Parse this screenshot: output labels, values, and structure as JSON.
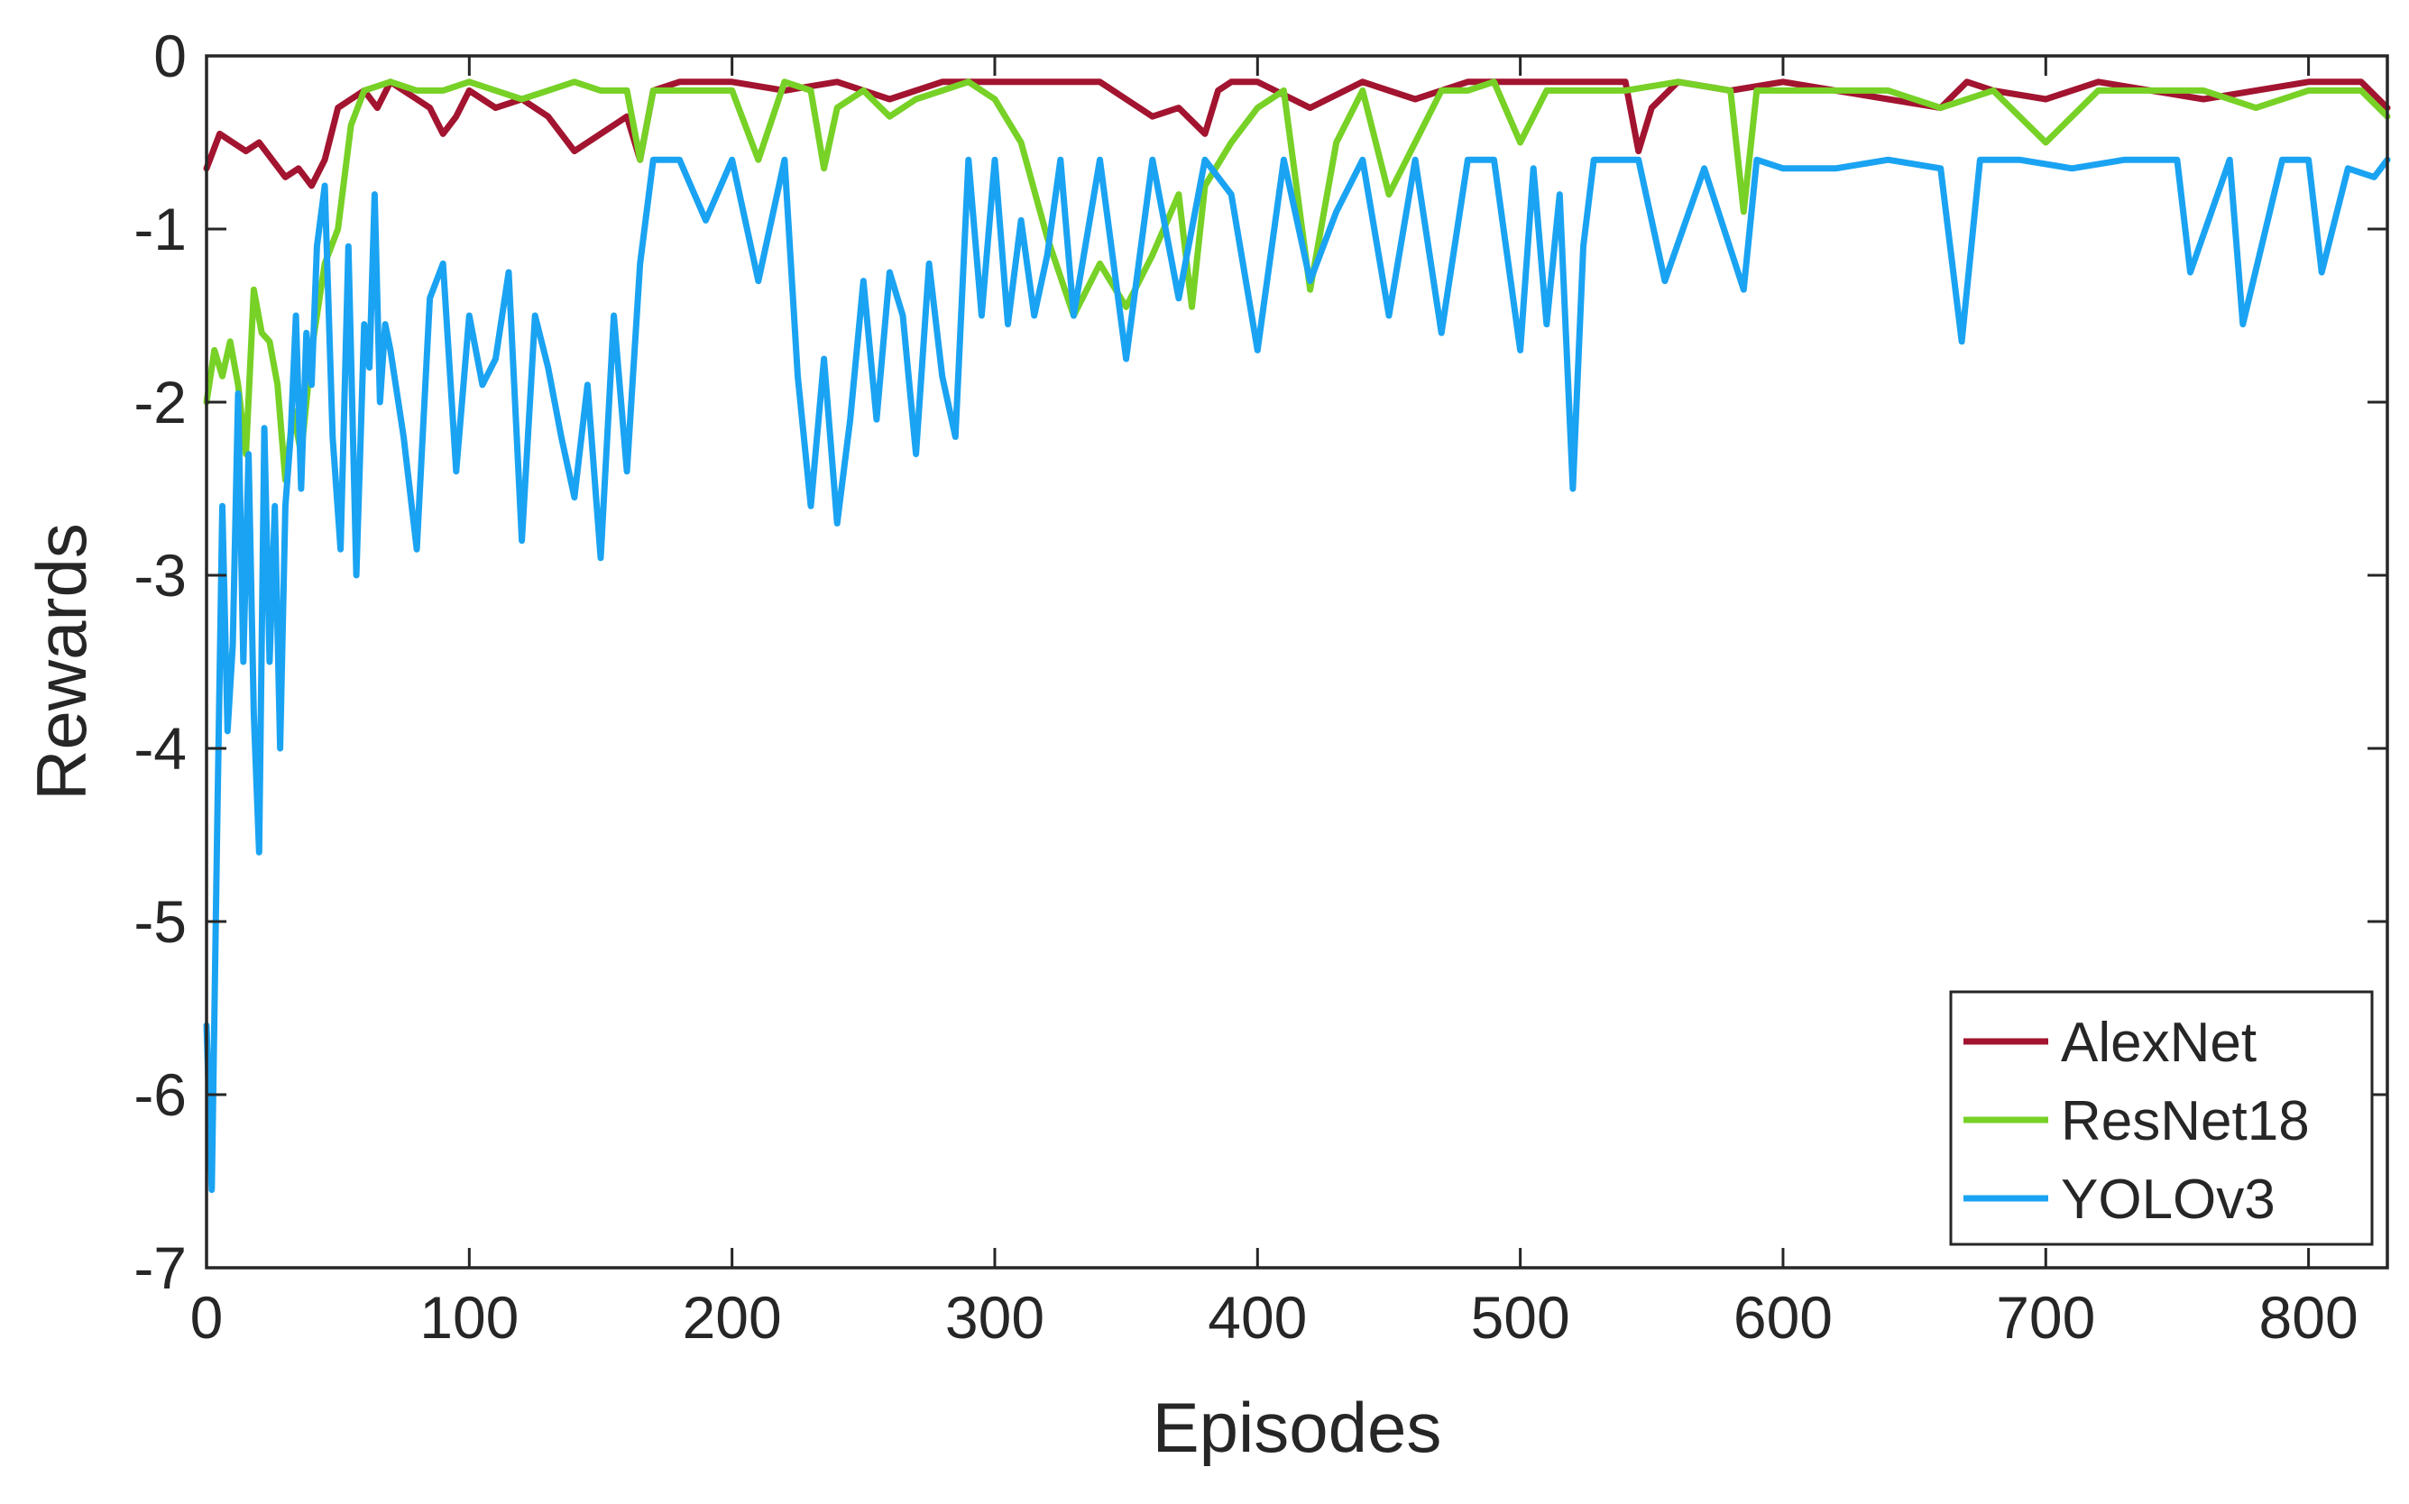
{
  "chart_data": {
    "type": "line",
    "title": "",
    "xlabel": "Episodes",
    "ylabel": "Rewards",
    "xlim": [
      0,
      830
    ],
    "ylim": [
      -7,
      0
    ],
    "xticks": [
      0,
      100,
      200,
      300,
      400,
      500,
      600,
      700,
      800
    ],
    "yticks": [
      0,
      -1,
      -2,
      -3,
      -4,
      -5,
      -6,
      -7
    ],
    "xtick_labels": [
      "0",
      "100",
      "200",
      "300",
      "400",
      "500",
      "600",
      "700",
      "800"
    ],
    "ytick_labels": [
      "0",
      "-1",
      "-2",
      "-3",
      "-4",
      "-5",
      "-6",
      "-7"
    ],
    "grid": false,
    "legend_position": "bottom-right",
    "series": [
      {
        "name": "AlexNet",
        "color": "#a2142f",
        "x": [
          0,
          5,
          10,
          15,
          20,
          25,
          30,
          35,
          40,
          45,
          50,
          55,
          60,
          65,
          70,
          75,
          80,
          85,
          90,
          95,
          100,
          110,
          120,
          130,
          140,
          150,
          160,
          165,
          170,
          180,
          200,
          220,
          240,
          260,
          280,
          300,
          320,
          340,
          350,
          360,
          370,
          380,
          385,
          390,
          400,
          420,
          440,
          460,
          480,
          500,
          520,
          540,
          545,
          550,
          560,
          580,
          600,
          620,
          640,
          660,
          670,
          680,
          700,
          720,
          740,
          760,
          780,
          800,
          820,
          830
        ],
        "y": [
          -0.65,
          -0.45,
          -0.5,
          -0.55,
          -0.5,
          -0.6,
          -0.7,
          -0.65,
          -0.75,
          -0.6,
          -0.3,
          -0.25,
          -0.2,
          -0.3,
          -0.15,
          -0.2,
          -0.25,
          -0.3,
          -0.45,
          -0.35,
          -0.2,
          -0.3,
          -0.25,
          -0.35,
          -0.55,
          -0.45,
          -0.35,
          -0.6,
          -0.2,
          -0.15,
          -0.15,
          -0.2,
          -0.15,
          -0.25,
          -0.15,
          -0.15,
          -0.15,
          -0.15,
          -0.25,
          -0.35,
          -0.3,
          -0.45,
          -0.2,
          -0.15,
          -0.15,
          -0.3,
          -0.15,
          -0.25,
          -0.15,
          -0.15,
          -0.15,
          -0.15,
          -0.55,
          -0.3,
          -0.15,
          -0.2,
          -0.15,
          -0.2,
          -0.25,
          -0.3,
          -0.15,
          -0.2,
          -0.25,
          -0.15,
          -0.2,
          -0.25,
          -0.2,
          -0.15,
          -0.15,
          -0.3
        ]
      },
      {
        "name": "ResNet18",
        "color": "#77d126",
        "x": [
          0,
          3,
          6,
          9,
          12,
          15,
          18,
          21,
          24,
          27,
          30,
          33,
          36,
          40,
          45,
          50,
          55,
          60,
          70,
          80,
          90,
          100,
          110,
          120,
          130,
          140,
          150,
          160,
          165,
          170,
          190,
          200,
          210,
          220,
          230,
          235,
          240,
          250,
          260,
          270,
          280,
          290,
          300,
          310,
          320,
          330,
          340,
          350,
          360,
          370,
          375,
          380,
          390,
          400,
          410,
          420,
          430,
          440,
          450,
          460,
          470,
          480,
          490,
          500,
          510,
          520,
          540,
          560,
          580,
          585,
          590,
          600,
          620,
          640,
          660,
          680,
          700,
          720,
          740,
          760,
          780,
          800,
          820,
          830
        ],
        "y": [
          -2.0,
          -1.7,
          -1.85,
          -1.65,
          -1.9,
          -2.3,
          -1.35,
          -1.6,
          -1.65,
          -1.9,
          -2.45,
          -2.05,
          -2.3,
          -1.7,
          -1.2,
          -1.0,
          -0.4,
          -0.2,
          -0.15,
          -0.2,
          -0.2,
          -0.15,
          -0.2,
          -0.25,
          -0.2,
          -0.15,
          -0.2,
          -0.2,
          -0.6,
          -0.2,
          -0.2,
          -0.2,
          -0.6,
          -0.15,
          -0.2,
          -0.65,
          -0.3,
          -0.2,
          -0.35,
          -0.25,
          -0.2,
          -0.15,
          -0.25,
          -0.5,
          -1.05,
          -1.5,
          -1.2,
          -1.45,
          -1.15,
          -0.8,
          -1.45,
          -0.75,
          -0.5,
          -0.3,
          -0.2,
          -1.35,
          -0.5,
          -0.2,
          -0.8,
          -0.5,
          -0.2,
          -0.2,
          -0.15,
          -0.5,
          -0.2,
          -0.2,
          -0.2,
          -0.15,
          -0.2,
          -0.9,
          -0.2,
          -0.2,
          -0.2,
          -0.2,
          -0.3,
          -0.2,
          -0.5,
          -0.2,
          -0.2,
          -0.2,
          -0.3,
          -0.2,
          -0.2,
          -0.35
        ]
      },
      {
        "name": "YOLOv3",
        "color": "#1aa3f2",
        "x": [
          0,
          2,
          4,
          6,
          8,
          10,
          12,
          14,
          16,
          18,
          20,
          22,
          24,
          26,
          28,
          30,
          32,
          34,
          36,
          38,
          40,
          42,
          45,
          48,
          51,
          54,
          57,
          60,
          62,
          64,
          66,
          68,
          70,
          75,
          80,
          85,
          90,
          95,
          100,
          105,
          110,
          115,
          120,
          125,
          130,
          135,
          140,
          145,
          150,
          155,
          160,
          165,
          170,
          180,
          190,
          200,
          210,
          220,
          225,
          230,
          235,
          240,
          245,
          250,
          255,
          260,
          265,
          270,
          275,
          280,
          285,
          290,
          295,
          300,
          305,
          310,
          315,
          320,
          325,
          330,
          340,
          350,
          360,
          370,
          380,
          390,
          400,
          410,
          420,
          430,
          440,
          450,
          460,
          470,
          480,
          490,
          500,
          505,
          510,
          515,
          520,
          524,
          528,
          535,
          545,
          555,
          570,
          585,
          590,
          600,
          620,
          640,
          660,
          668,
          675,
          690,
          710,
          730,
          750,
          755,
          770,
          775,
          790,
          800,
          805,
          815,
          825,
          830
        ],
        "y": [
          -5.6,
          -6.55,
          -4.5,
          -2.6,
          -3.9,
          -3.4,
          -1.95,
          -3.5,
          -2.3,
          -3.8,
          -4.6,
          -2.15,
          -3.5,
          -2.6,
          -4.0,
          -2.6,
          -2.2,
          -1.5,
          -2.5,
          -1.6,
          -1.9,
          -1.1,
          -0.75,
          -2.2,
          -2.85,
          -1.1,
          -3.0,
          -1.55,
          -1.8,
          -0.8,
          -2.0,
          -1.55,
          -1.7,
          -2.2,
          -2.85,
          -1.4,
          -1.2,
          -2.4,
          -1.5,
          -1.9,
          -1.75,
          -1.25,
          -2.8,
          -1.5,
          -1.8,
          -2.2,
          -2.55,
          -1.9,
          -2.9,
          -1.5,
          -2.4,
          -1.2,
          -0.6,
          -0.6,
          -0.95,
          -0.6,
          -1.3,
          -0.6,
          -1.85,
          -2.6,
          -1.75,
          -2.7,
          -2.1,
          -1.3,
          -2.1,
          -1.25,
          -1.5,
          -2.3,
          -1.2,
          -1.85,
          -2.2,
          -0.6,
          -1.5,
          -0.6,
          -1.55,
          -0.95,
          -1.5,
          -1.15,
          -0.6,
          -1.5,
          -0.6,
          -1.75,
          -0.6,
          -1.4,
          -0.6,
          -0.8,
          -1.7,
          -0.6,
          -1.3,
          -0.9,
          -0.6,
          -1.5,
          -0.6,
          -1.6,
          -0.6,
          -0.6,
          -1.7,
          -0.65,
          -1.55,
          -0.8,
          -2.5,
          -1.1,
          -0.6,
          -0.6,
          -0.6,
          -1.3,
          -0.65,
          -1.35,
          -0.6,
          -0.65,
          -0.65,
          -0.6,
          -0.65,
          -1.65,
          -0.6,
          -0.6,
          -0.65,
          -0.6,
          -0.6,
          -1.25,
          -0.6,
          -1.55,
          -0.6,
          -0.6,
          -1.25,
          -0.65,
          -0.7,
          -0.6
        ]
      }
    ]
  }
}
